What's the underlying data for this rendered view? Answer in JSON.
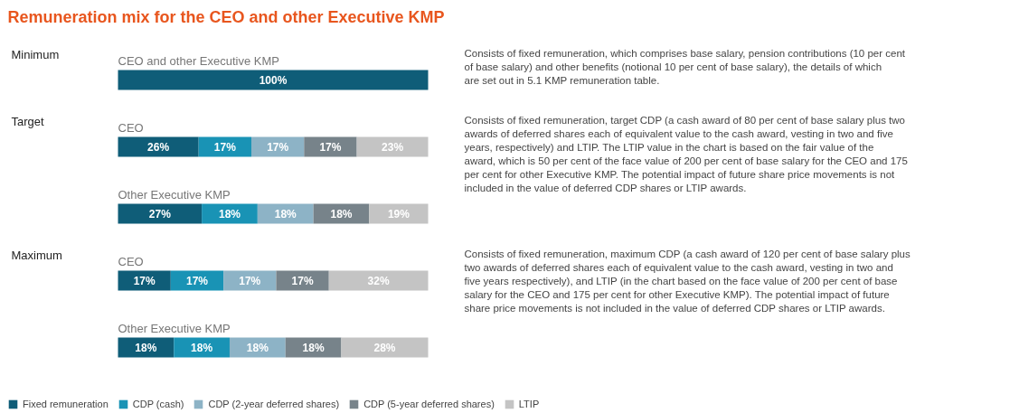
{
  "chart_data": {
    "type": "bar",
    "orientation": "horizontal",
    "stacked": true,
    "title": "Remuneration mix for the CEO and other Executive KMP",
    "categories": [
      "CEO and other Executive KMP",
      "CEO",
      "Other Executive KMP",
      "CEO",
      "Other Executive KMP"
    ],
    "series": [
      {
        "name": "Fixed remuneration",
        "color": "#0f5d78",
        "values": [
          100,
          26,
          27,
          17,
          18
        ],
        "value_labels": [
          "100%",
          "26%",
          "27%",
          "17%",
          "18%"
        ]
      },
      {
        "name": "CDP (cash)",
        "color": "#1993b5",
        "values": [
          null,
          17,
          18,
          17,
          18
        ],
        "value_labels": [
          null,
          "17%",
          "18%",
          "17%",
          "18%"
        ]
      },
      {
        "name": "CDP (2-year deferred shares)",
        "color": "#8db3c6",
        "values": [
          null,
          17,
          18,
          17,
          18
        ],
        "value_labels": [
          null,
          "17%",
          "18%",
          "17%",
          "18%"
        ]
      },
      {
        "name": "CDP (5-year deferred shares)",
        "color": "#77838a",
        "values": [
          null,
          17,
          18,
          17,
          18
        ],
        "value_labels": [
          null,
          "17%",
          "18%",
          "17%",
          "18%"
        ]
      },
      {
        "name": "LTIP",
        "color": "#c4c4c4",
        "values": [
          null,
          23,
          19,
          32,
          28
        ],
        "value_labels": [
          null,
          "23%",
          "19%",
          "32%",
          "28%"
        ]
      }
    ],
    "tick_labels": false,
    "legend": "bottom left",
    "annotations": [
      "Minimum",
      "Target",
      "Maximum",
      "Consists of fixed remuneration, which comprises base salary, pension contributions (10 per cent of base salary) and other benefits (notional 10 per cent of base salary), the details of which are set out in 5.1 KMP remuneration table.",
      "Consists of fixed remuneration, target CDP (a cash award of 80 per cent of base salary plus two awards of deferred shares each of equivalent value to the cash award, vesting in two and five years, respectively) and LTIP. The LTIP value in the chart is based on the fair value of the award, which is 50 per cent of the face value of 200 per cent of base salary for the CEO and 175 per cent for other Executive KMP. The potential impact of future share price movements is not included in the value of deferred CDP shares or LTIP awards.",
      "Consists of fixed remuneration, maximum CDP (a cash award of 120 per cent of base salary plus two awards of deferred shares each of equivalent value to the cash award, vesting in two and five years respectively), and LTIP (in the chart based on the face value of 200 per cent of base salary for the CEO and 175 per cent for other Executive KMP). The potential impact of future share price movements is not included in the value of deferred CDP shares or LTIP awards."
    ]
  }
}
